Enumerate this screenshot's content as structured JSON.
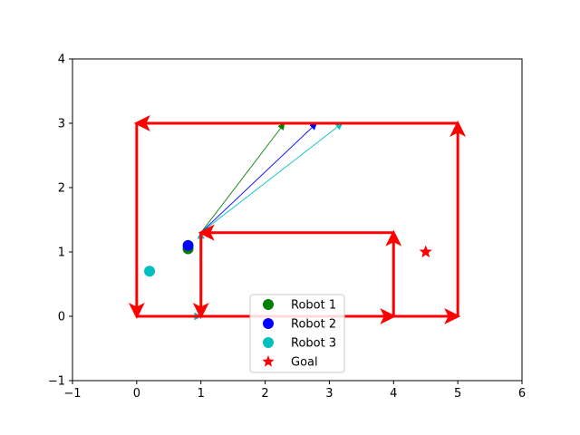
{
  "chart_data": {
    "type": "scatter",
    "title": "",
    "xlabel": "",
    "ylabel": "",
    "xlim": [
      -1,
      6
    ],
    "ylim": [
      -1,
      4
    ],
    "xticks": [
      -1,
      0,
      1,
      2,
      3,
      4,
      5,
      6
    ],
    "yticks": [
      -1,
      0,
      1,
      2,
      3,
      4
    ],
    "xtick_labels": [
      "−1",
      "0",
      "1",
      "2",
      "3",
      "4",
      "5",
      "6"
    ],
    "ytick_labels": [
      "−1",
      "0",
      "1",
      "2",
      "3",
      "4"
    ],
    "grid": false,
    "legend_position": "bottom-center",
    "series": [
      {
        "name": "Robot 1",
        "marker": "circle",
        "color": "#008000",
        "points": [
          [
            0.8,
            1.05
          ]
        ]
      },
      {
        "name": "Robot 2",
        "marker": "circle",
        "color": "#0000ff",
        "points": [
          [
            0.8,
            1.1
          ]
        ]
      },
      {
        "name": "Robot 3",
        "marker": "circle",
        "color": "#00bfbf",
        "points": [
          [
            0.2,
            0.7
          ]
        ]
      },
      {
        "name": "Goal",
        "marker": "star",
        "color": "#ff0000",
        "points": [
          [
            4.5,
            1.0
          ]
        ]
      }
    ],
    "paths": [
      {
        "name": "outer-loop",
        "color": "#ff0000",
        "width": 3,
        "segments": [
          [
            [
              0,
              0
            ],
            [
              5,
              0
            ]
          ],
          [
            [
              5,
              0
            ],
            [
              5,
              3
            ]
          ],
          [
            [
              5,
              3
            ],
            [
              0,
              3
            ]
          ],
          [
            [
              0,
              3
            ],
            [
              0,
              0
            ]
          ]
        ]
      },
      {
        "name": "inner-loop",
        "color": "#ff0000",
        "width": 3,
        "segments": [
          [
            [
              1,
              0
            ],
            [
              4,
              0
            ]
          ],
          [
            [
              4,
              0
            ],
            [
              4,
              1.3
            ]
          ],
          [
            [
              4,
              1.3
            ],
            [
              1,
              1.3
            ]
          ],
          [
            [
              1,
              1.3
            ],
            [
              1,
              0
            ]
          ]
        ]
      },
      {
        "name": "robot-1-trail",
        "color": "#008000",
        "width": 1,
        "segments": [
          [
            [
              0,
              0
            ],
            [
              1,
              0
            ]
          ],
          [
            [
              1,
              0
            ],
            [
              1,
              1.3
            ]
          ],
          [
            [
              1,
              1.3
            ],
            [
              2.3,
              3
            ]
          ],
          [
            [
              3.2,
              3
            ],
            [
              0,
              3
            ]
          ],
          [
            [
              0,
              3
            ],
            [
              0,
              0
            ]
          ]
        ]
      },
      {
        "name": "robot-2-trail",
        "color": "#0000ff",
        "width": 1,
        "segments": [
          [
            [
              0,
              0
            ],
            [
              1,
              0
            ]
          ],
          [
            [
              1,
              0
            ],
            [
              1,
              1.3
            ]
          ],
          [
            [
              1,
              1.3
            ],
            [
              2.8,
              3
            ]
          ],
          [
            [
              3.2,
              3
            ],
            [
              0,
              3
            ]
          ],
          [
            [
              0,
              3
            ],
            [
              0,
              0
            ]
          ]
        ]
      },
      {
        "name": "robot-3-trail",
        "color": "#00bfbf",
        "width": 1,
        "segments": [
          [
            [
              0,
              0
            ],
            [
              1,
              0
            ]
          ],
          [
            [
              1,
              0
            ],
            [
              1,
              1.3
            ]
          ],
          [
            [
              1,
              1.3
            ],
            [
              3.2,
              3
            ]
          ],
          [
            [
              3.2,
              3
            ],
            [
              0,
              3
            ]
          ],
          [
            [
              0,
              3
            ],
            [
              0,
              0
            ]
          ]
        ]
      }
    ]
  }
}
